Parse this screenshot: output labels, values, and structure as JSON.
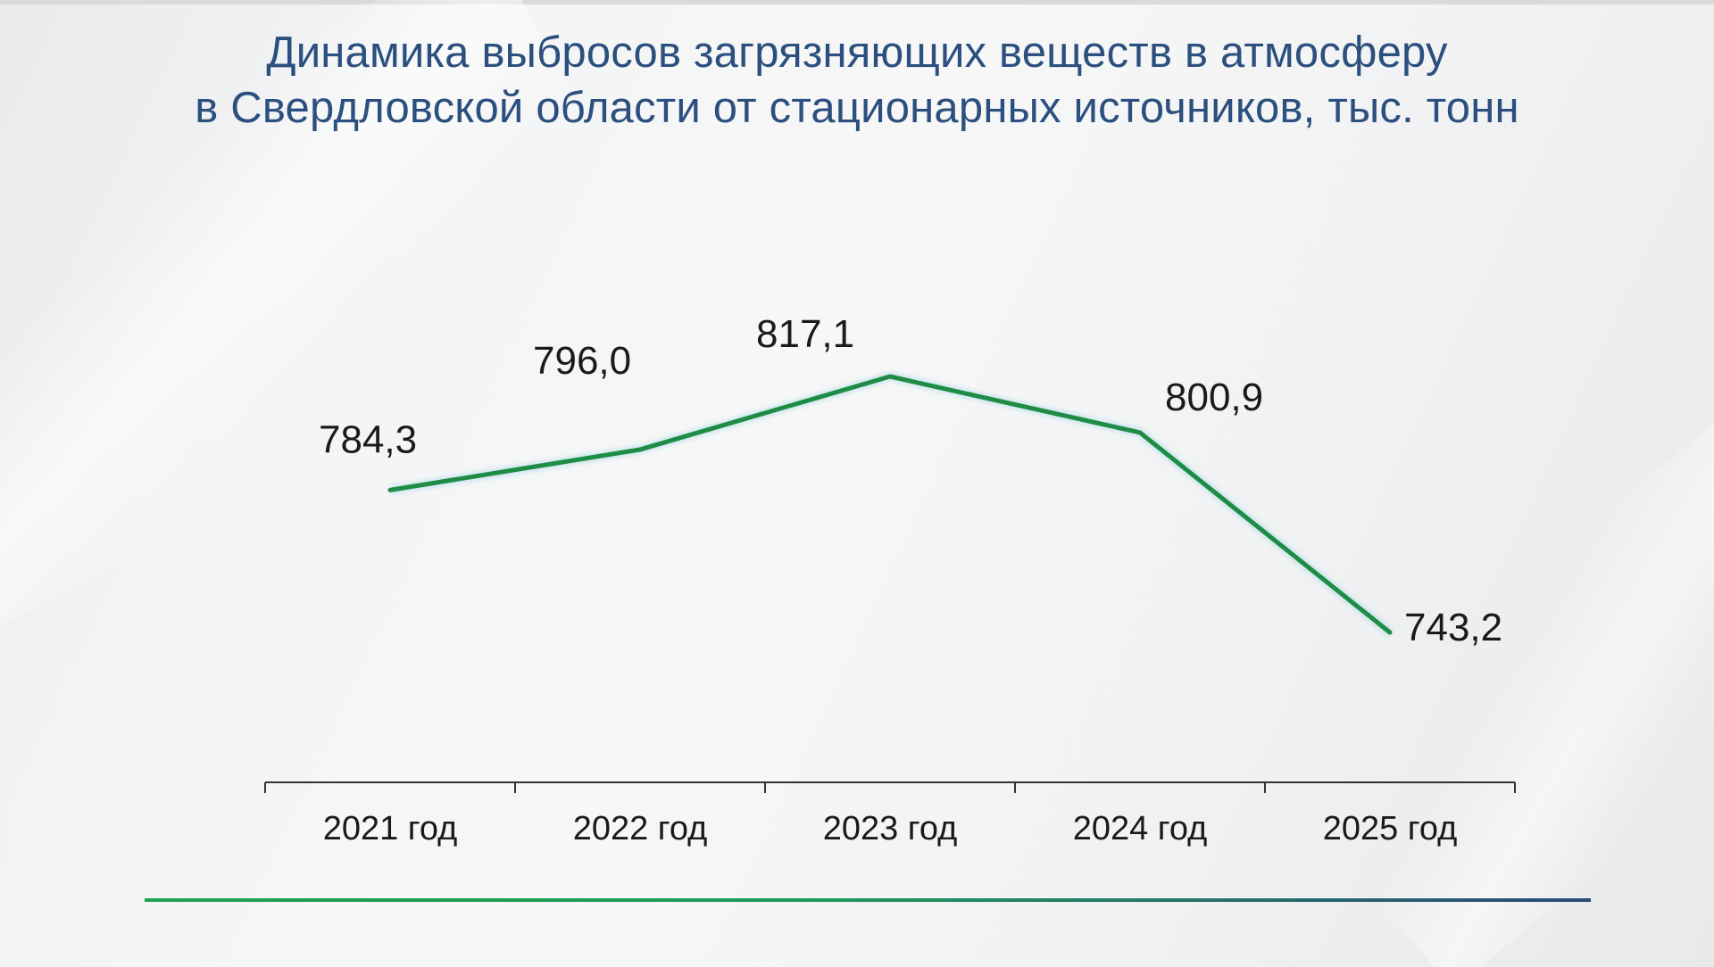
{
  "title": {
    "line1": "Динамика выбросов загрязняющих веществ в атмосферу",
    "line2": "в Свердловской области от стационарных источников, тыс. тонн"
  },
  "colors": {
    "title": "#2b4f7e",
    "line": "#1e8c45",
    "axis": "#333333"
  },
  "chart_data": {
    "type": "line",
    "categories": [
      "2021 год",
      "2022 год",
      "2023 год",
      "2024 год",
      "2025 год"
    ],
    "series": [
      {
        "values": [
          784.3,
          796.0,
          817.1,
          800.9,
          743.2
        ],
        "labels": [
          "784,3",
          "796,0",
          "817,1",
          "800,9",
          "743,2"
        ]
      }
    ],
    "title": "Динамика выбросов загрязняющих веществ в атмосферу в Свердловской области от стационарных источников, тыс. тонн",
    "xlabel": "",
    "ylabel": "",
    "grid": false,
    "legend": "none"
  }
}
